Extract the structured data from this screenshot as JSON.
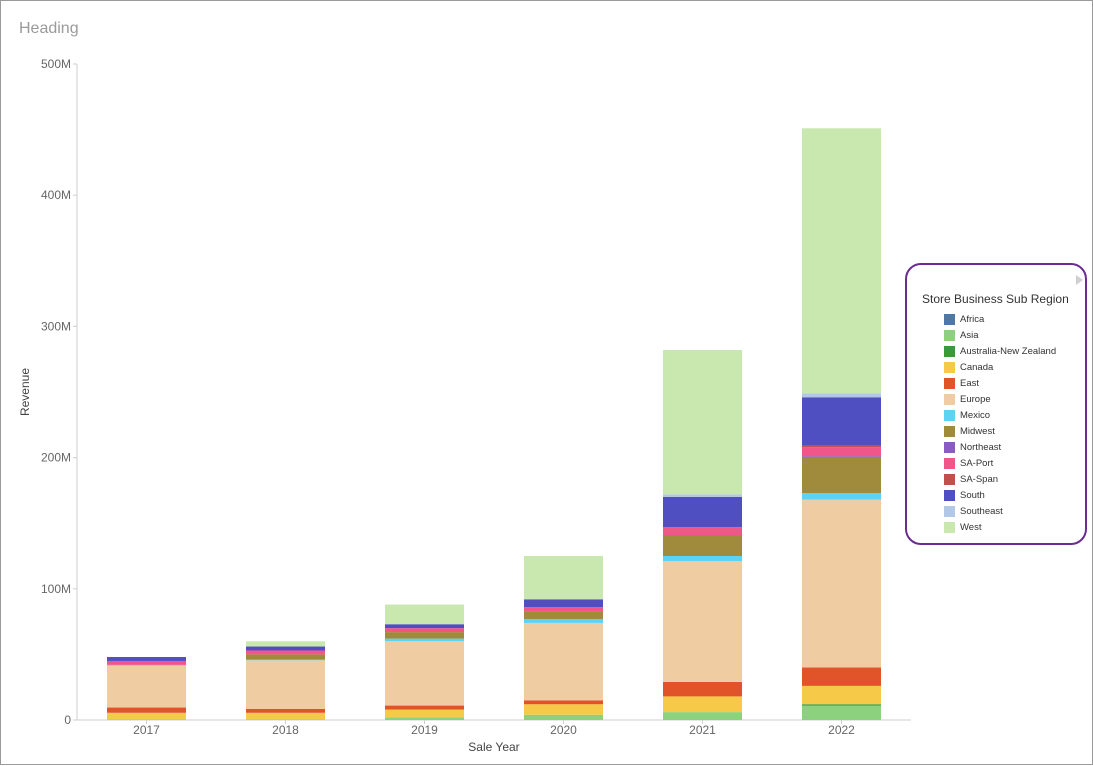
{
  "heading": "Heading",
  "chart_data": {
    "type": "bar",
    "stacked": true,
    "xlabel": "Sale Year",
    "ylabel": "Revenue",
    "ylim": [
      0,
      500
    ],
    "y_unit": "M",
    "y_ticks": [
      0,
      100,
      200,
      300,
      400,
      500
    ],
    "y_tick_labels": [
      "0",
      "100M",
      "200M",
      "300M",
      "400M",
      "500M"
    ],
    "categories": [
      "2017",
      "2018",
      "2019",
      "2020",
      "2021",
      "2022"
    ],
    "legend_title": "Store Business Sub Region",
    "legend_position": "right",
    "grid": false,
    "series": [
      {
        "name": "Africa",
        "color": "#4e79a7",
        "values": [
          0,
          0,
          0,
          0,
          0,
          0
        ]
      },
      {
        "name": "Asia",
        "color": "#8cd17d",
        "values": [
          0.5,
          0.5,
          2,
          4,
          6,
          11
        ]
      },
      {
        "name": "Australia-New Zealand",
        "color": "#3a9a3a",
        "values": [
          0,
          0,
          0,
          0,
          0,
          1
        ]
      },
      {
        "name": "Canada",
        "color": "#f7c948",
        "values": [
          5,
          5,
          6,
          8,
          12,
          14
        ]
      },
      {
        "name": "East",
        "color": "#e15429",
        "values": [
          4,
          3,
          3,
          3,
          11,
          14
        ]
      },
      {
        "name": "Europe",
        "color": "#f0cca3",
        "values": [
          32,
          37,
          49,
          59,
          92,
          128
        ]
      },
      {
        "name": "Mexico",
        "color": "#5cd3f5",
        "values": [
          0.5,
          0.5,
          2,
          3,
          4,
          5
        ]
      },
      {
        "name": "Midwest",
        "color": "#a08a3c",
        "values": [
          0,
          4,
          5,
          6,
          16,
          27
        ]
      },
      {
        "name": "Northeast",
        "color": "#8a5cc2",
        "values": [
          0,
          0,
          0,
          0,
          0,
          1
        ]
      },
      {
        "name": "SA-Port",
        "color": "#f0568a",
        "values": [
          3,
          3,
          3,
          3,
          6,
          7
        ]
      },
      {
        "name": "SA-Span",
        "color": "#c0504d",
        "values": [
          0,
          0,
          0,
          0,
          0,
          1
        ]
      },
      {
        "name": "South",
        "color": "#4f4fc1",
        "values": [
          3,
          3,
          3,
          6,
          23,
          37
        ]
      },
      {
        "name": "Southeast",
        "color": "#b3c7e6",
        "values": [
          0,
          0,
          0,
          0,
          2,
          3
        ]
      },
      {
        "name": "West",
        "color": "#c8e8b0",
        "values": [
          0,
          4,
          15,
          33,
          110,
          202
        ]
      }
    ]
  }
}
